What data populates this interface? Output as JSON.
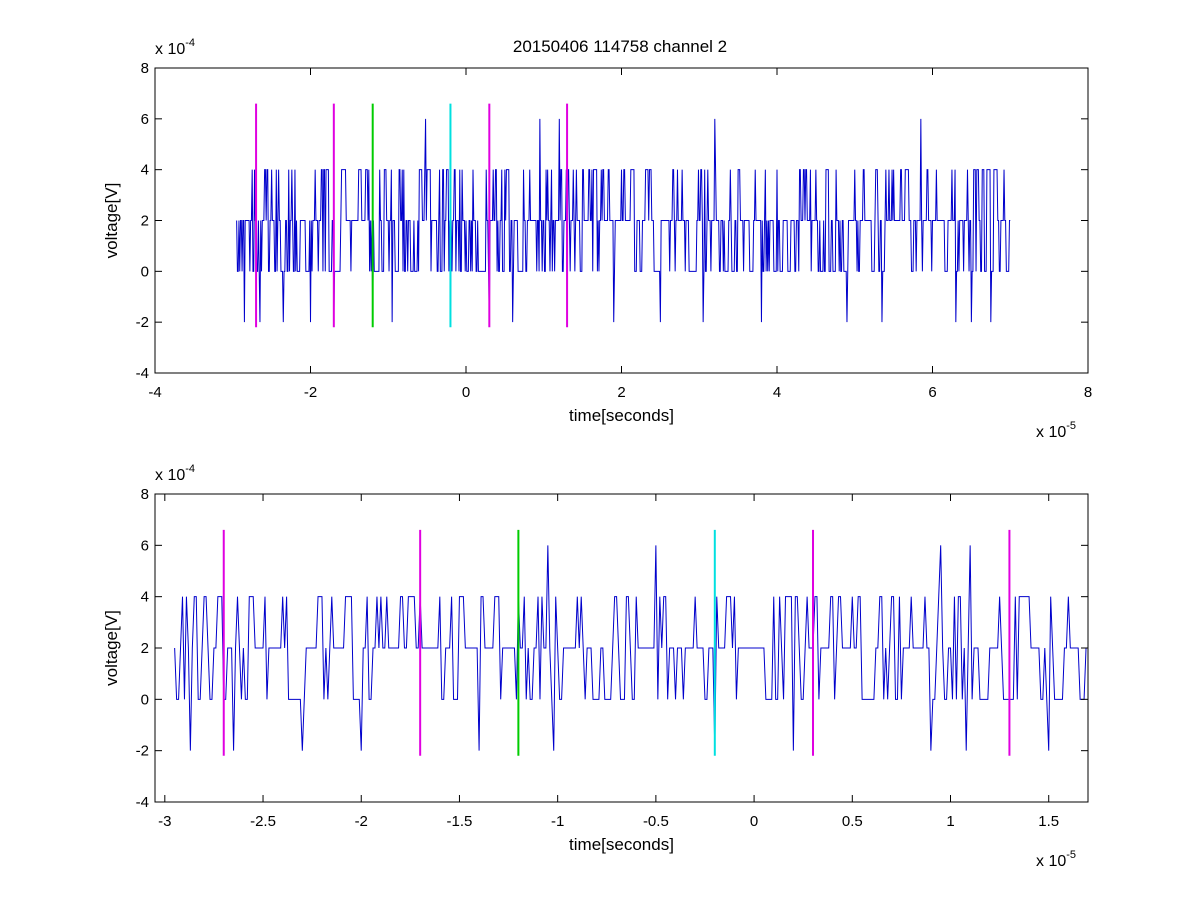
{
  "figure": {
    "title": "20150406 114758 channel 2"
  },
  "chart_data": [
    {
      "type": "line",
      "title": "20150406 114758 channel 2",
      "xlabel": "time[seconds]",
      "ylabel": "voltage[V]",
      "x_multiplier": {
        "base": "x 10",
        "exponent": "-5"
      },
      "y_multiplier": {
        "base": "x 10",
        "exponent": "-4"
      },
      "xlim": [
        -4e-05,
        8e-05
      ],
      "ylim": [
        -0.0004,
        0.0008
      ],
      "x_ticks": [
        -4e-05,
        -2e-05,
        0,
        2e-05,
        4e-05,
        6e-05,
        8e-05
      ],
      "x_tick_labels": [
        "-4",
        "-2",
        "0",
        "2",
        "4",
        "6",
        "8"
      ],
      "y_ticks": [
        -0.0004,
        -0.0002,
        0,
        0.0002,
        0.0004,
        0.0006,
        0.0008
      ],
      "y_tick_labels": [
        "-4",
        "-2",
        "0",
        "2",
        "4",
        "6",
        "8"
      ],
      "grid": false,
      "legend": "none",
      "signal": {
        "color": "#0000cc",
        "x_start": -2.95e-05,
        "x_end": 7e-05,
        "sample_step": 1e-07,
        "allowed_levels": [
          -0.0002,
          0,
          0.0002,
          0.0004,
          0.0006
        ],
        "peak_events": [
          {
            "x": -2.75e-05,
            "y": 0.0004
          },
          {
            "x": -2.5e-05,
            "y": 0.0004
          },
          {
            "x": -2.2e-05,
            "y": 0.0004
          },
          {
            "x": -1.85e-05,
            "y": 0.0004
          },
          {
            "x": -1.55e-05,
            "y": 0.0004
          },
          {
            "x": -1.35e-05,
            "y": 0.0004
          },
          {
            "x": -1.05e-05,
            "y": 0.0004
          },
          {
            "x": -8e-06,
            "y": 0.0004
          },
          {
            "x": -5.2e-06,
            "y": 0.0006
          },
          {
            "x": -3e-06,
            "y": 0.0004
          },
          {
            "x": -5e-07,
            "y": 0.0004
          },
          {
            "x": 3.5e-06,
            "y": 0.0004
          },
          {
            "x": 5e-06,
            "y": 0.0004
          },
          {
            "x": 9.5e-06,
            "y": 0.0006
          },
          {
            "x": 1.2e-05,
            "y": 0.0006
          },
          {
            "x": 1.5e-05,
            "y": 0.0004
          },
          {
            "x": 2e-05,
            "y": 0.0004
          },
          {
            "x": 2.5e-05,
            "y": 0.0004
          },
          {
            "x": 3.2e-05,
            "y": 0.0006
          },
          {
            "x": 3.5e-05,
            "y": 0.0004
          },
          {
            "x": 4e-05,
            "y": 0.0004
          },
          {
            "x": 4.5e-05,
            "y": 0.0004
          },
          {
            "x": 5e-05,
            "y": 0.0004
          },
          {
            "x": 5.5e-05,
            "y": 0.0004
          },
          {
            "x": 5.85e-05,
            "y": 0.0006
          },
          {
            "x": 6.3e-05,
            "y": 0.0004
          },
          {
            "x": 6.7e-05,
            "y": 0.0004
          }
        ],
        "trough_events": [
          {
            "x": -2.85e-05,
            "y": -0.0002
          },
          {
            "x": -2.65e-05,
            "y": -0.0002
          },
          {
            "x": -2.35e-05,
            "y": -0.0002
          },
          {
            "x": -2e-05,
            "y": -0.0002
          },
          {
            "x": -1.7e-05,
            "y": -0.0002
          },
          {
            "x": -1.2e-05,
            "y": -0.0002
          },
          {
            "x": -9.5e-06,
            "y": -0.0002
          },
          {
            "x": -2e-06,
            "y": -0.0002
          },
          {
            "x": 3e-06,
            "y": -0.0002
          },
          {
            "x": 6e-06,
            "y": -0.0002
          },
          {
            "x": 1.3e-05,
            "y": -0.0002
          },
          {
            "x": 1.9e-05,
            "y": -0.0002
          },
          {
            "x": 2.5e-05,
            "y": -0.0002
          },
          {
            "x": 3.05e-05,
            "y": -0.0002
          },
          {
            "x": 3.8e-05,
            "y": -0.0002
          },
          {
            "x": 4.9e-05,
            "y": -0.0002
          },
          {
            "x": 5.35e-05,
            "y": -0.0002
          },
          {
            "x": 6.3e-05,
            "y": -0.0002
          },
          {
            "x": 6.5e-05,
            "y": -0.0002
          },
          {
            "x": 6.75e-05,
            "y": -0.0002
          }
        ]
      },
      "markers": [
        {
          "x": -2.7e-05,
          "color": "#e000e0",
          "y_range": [
            -0.00022,
            0.00066
          ]
        },
        {
          "x": -1.7e-05,
          "color": "#e000e0",
          "y_range": [
            -0.00022,
            0.00066
          ]
        },
        {
          "x": -1.2e-05,
          "color": "#00cc00",
          "y_range": [
            -0.00022,
            0.00066
          ]
        },
        {
          "x": -2e-06,
          "color": "#00e0e0",
          "y_range": [
            -0.00022,
            0.00066
          ]
        },
        {
          "x": 3e-06,
          "color": "#e000e0",
          "y_range": [
            -0.00022,
            0.00066
          ]
        },
        {
          "x": 1.3e-05,
          "color": "#e000e0",
          "y_range": [
            -0.00022,
            0.00066
          ]
        }
      ]
    },
    {
      "type": "line",
      "title": "",
      "xlabel": "time[seconds]",
      "ylabel": "voltage[V]",
      "x_multiplier": {
        "base": "x 10",
        "exponent": "-5"
      },
      "y_multiplier": {
        "base": "x 10",
        "exponent": "-4"
      },
      "xlim": [
        -3.05e-05,
        1.7e-05
      ],
      "ylim": [
        -0.0004,
        0.0008
      ],
      "x_ticks": [
        -3e-05,
        -2.5e-05,
        -2e-05,
        -1.5e-05,
        -1e-05,
        -5e-06,
        0,
        5e-06,
        1e-05,
        1.5e-05
      ],
      "x_tick_labels": [
        "-3",
        "-2.5",
        "-2",
        "-1.5",
        "-1",
        "-0.5",
        "0",
        "0.5",
        "1",
        "1.5"
      ],
      "y_ticks": [
        -0.0004,
        -0.0002,
        0,
        0.0002,
        0.0004,
        0.0006,
        0.0008
      ],
      "y_tick_labels": [
        "-4",
        "-2",
        "0",
        "2",
        "4",
        "6",
        "8"
      ],
      "grid": false,
      "legend": "none",
      "signal": {
        "color": "#0000cc",
        "x_start": -2.95e-05,
        "x_end": 1.7e-05,
        "sample_step": 1e-07,
        "allowed_levels": [
          -0.0002,
          0,
          0.0002,
          0.0004,
          0.0006
        ],
        "peak_events": [
          {
            "x": -2.73e-05,
            "y": 0.0004
          },
          {
            "x": -2.55e-05,
            "y": 0.0004
          },
          {
            "x": -2.4e-05,
            "y": 0.0004
          },
          {
            "x": -2.2e-05,
            "y": 0.0004
          },
          {
            "x": -2.15e-05,
            "y": 0.0004
          },
          {
            "x": -1.9e-05,
            "y": 0.0004
          },
          {
            "x": -1.8e-05,
            "y": 0.0004
          },
          {
            "x": -1.7e-05,
            "y": 0.0004
          },
          {
            "x": -1.6e-05,
            "y": 0.0004
          },
          {
            "x": -1.2e-05,
            "y": 0.0004
          },
          {
            "x": -1.1e-05,
            "y": 0.0004
          },
          {
            "x": -1.05e-05,
            "y": 0.0006
          },
          {
            "x": -9e-06,
            "y": 0.0004
          },
          {
            "x": -7e-06,
            "y": 0.0004
          },
          {
            "x": -6e-06,
            "y": 0.0004
          },
          {
            "x": -5e-06,
            "y": 0.0006
          },
          {
            "x": -3e-06,
            "y": 0.0004
          },
          {
            "x": -1e-06,
            "y": 0.0004
          },
          {
            "x": 1e-06,
            "y": 0.0004
          },
          {
            "x": 4e-06,
            "y": 0.0004
          },
          {
            "x": 5e-06,
            "y": 0.0004
          },
          {
            "x": 7e-06,
            "y": 0.0004
          },
          {
            "x": 9.5e-06,
            "y": 0.0006
          },
          {
            "x": 1.1e-05,
            "y": 0.0006
          },
          {
            "x": 1.25e-05,
            "y": 0.0004
          },
          {
            "x": 1.35e-05,
            "y": 0.0004
          },
          {
            "x": 1.6e-05,
            "y": 0.0004
          }
        ],
        "trough_events": [
          {
            "x": -2.87e-05,
            "y": -0.0002
          },
          {
            "x": -2.65e-05,
            "y": -0.0002
          },
          {
            "x": -2.3e-05,
            "y": -0.0002
          },
          {
            "x": -2e-05,
            "y": -0.0002
          },
          {
            "x": -1.4e-05,
            "y": -0.0002
          },
          {
            "x": -1.02e-05,
            "y": -0.0002
          },
          {
            "x": -2e-06,
            "y": -0.0002
          },
          {
            "x": 2e-06,
            "y": -0.0002
          },
          {
            "x": 9e-06,
            "y": -0.0002
          },
          {
            "x": 1.08e-05,
            "y": -0.0002
          },
          {
            "x": 1.5e-05,
            "y": -0.0002
          }
        ]
      },
      "markers": [
        {
          "x": -2.7e-05,
          "color": "#e000e0",
          "y_range": [
            -0.00022,
            0.00066
          ]
        },
        {
          "x": -1.7e-05,
          "color": "#e000e0",
          "y_range": [
            -0.00022,
            0.00066
          ]
        },
        {
          "x": -1.2e-05,
          "color": "#00cc00",
          "y_range": [
            -0.00022,
            0.00066
          ]
        },
        {
          "x": -2e-06,
          "color": "#00e0e0",
          "y_range": [
            -0.00022,
            0.00066
          ]
        },
        {
          "x": 3e-06,
          "color": "#e000e0",
          "y_range": [
            -0.00022,
            0.00066
          ]
        },
        {
          "x": 1.3e-05,
          "color": "#e000e0",
          "y_range": [
            -0.00022,
            0.00066
          ]
        }
      ]
    }
  ]
}
